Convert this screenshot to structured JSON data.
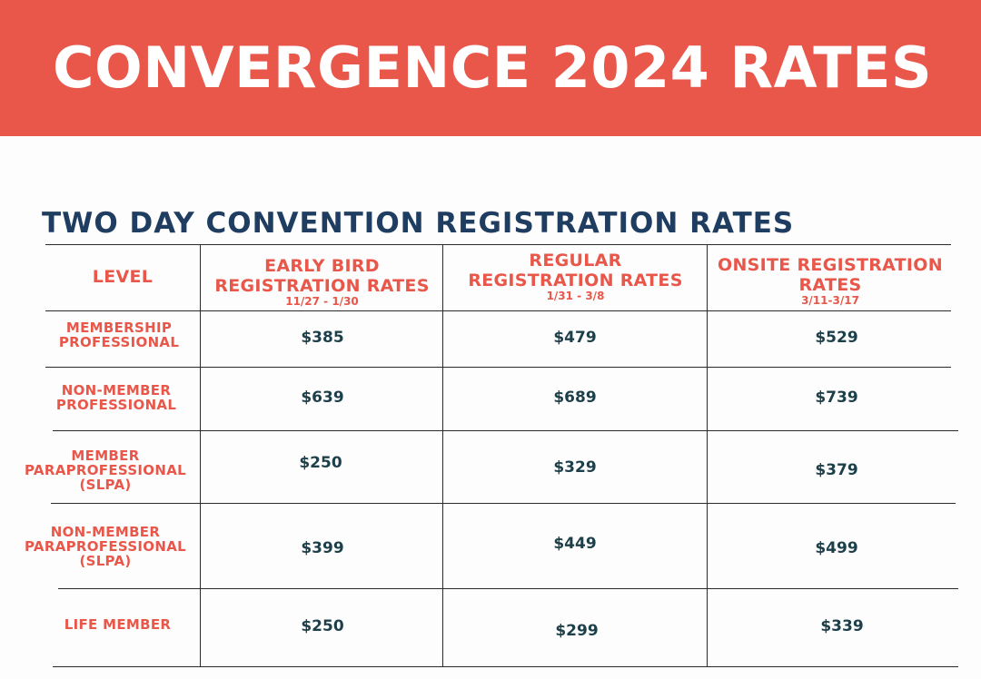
{
  "banner": {
    "title": "CONVERGENCE 2024 RATES"
  },
  "section": {
    "title": "TWO DAY CONVENTION REGISTRATION RATES"
  },
  "table": {
    "headers": [
      {
        "label": "LEVEL"
      },
      {
        "label": "EARLY BIRD REGISTRATION RATES",
        "dates": "11/27 - 1/30"
      },
      {
        "label": "REGULAR REGISTRATION RATES",
        "dates": "1/31 - 3/8"
      },
      {
        "label": "ONSITE REGISTRATION RATES",
        "dates": "3/11-3/17"
      }
    ],
    "rows": [
      {
        "level": "MEMBERSHIP PROFESSIONAL",
        "early": "$385",
        "regular": "$479",
        "onsite": "$529"
      },
      {
        "level": "NON-MEMBER PROFESSIONAL",
        "early": "$639",
        "regular": "$689",
        "onsite": "$739"
      },
      {
        "level": "MEMBER PARAPROFESSIONAL (SLPA)",
        "early": "$250",
        "regular": "$329",
        "onsite": "$379"
      },
      {
        "level": "NON-MEMBER PARAPROFESSIONAL (SLPA)",
        "early": "$399",
        "regular": "$449",
        "onsite": "$499"
      },
      {
        "level": "LIFE MEMBER",
        "early": "$250",
        "regular": "$299",
        "onsite": "$339"
      }
    ]
  },
  "colors": {
    "banner": "#e8574a",
    "accent": "#e8574a",
    "heading": "#1f3d60",
    "price": "#1c3f4a"
  }
}
